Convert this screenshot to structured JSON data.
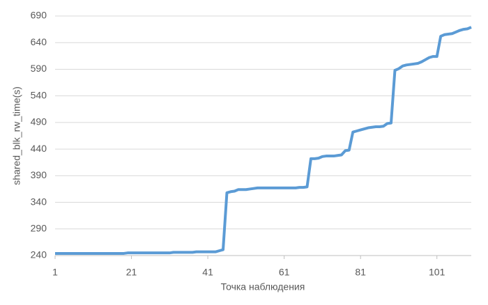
{
  "chart_data": {
    "type": "line",
    "x_label": "Точка наблюдения",
    "y_label": "shared_blk_rw_time(s)",
    "x": [
      1,
      2,
      3,
      4,
      5,
      6,
      7,
      8,
      9,
      10,
      11,
      12,
      13,
      14,
      15,
      16,
      17,
      18,
      19,
      20,
      21,
      22,
      23,
      24,
      25,
      26,
      27,
      28,
      29,
      30,
      31,
      32,
      33,
      34,
      35,
      36,
      37,
      38,
      39,
      40,
      41,
      42,
      43,
      44,
      45,
      46,
      47,
      48,
      49,
      50,
      51,
      52,
      53,
      54,
      55,
      56,
      57,
      58,
      59,
      60,
      61,
      62,
      63,
      64,
      65,
      66,
      67,
      68,
      69,
      70,
      71,
      72,
      73,
      74,
      75,
      76,
      77,
      78,
      79,
      80,
      81,
      82,
      83,
      84,
      85,
      86,
      87,
      88,
      89,
      90,
      91,
      92,
      93,
      94,
      95,
      96,
      97,
      98,
      99,
      100,
      101,
      102,
      103,
      104,
      105,
      106,
      107,
      108,
      109,
      110
    ],
    "series": [
      {
        "name": "shared_blk_rw_time(s)",
        "color": "#5b9bd5",
        "values": [
          244,
          244,
          244,
          244,
          244,
          244,
          244,
          244,
          244,
          244,
          244,
          244,
          244,
          244,
          244,
          244,
          244,
          244,
          244,
          245,
          245,
          245,
          245,
          245,
          245,
          245,
          245,
          245,
          245,
          245,
          245,
          246,
          246,
          246,
          246,
          246,
          246,
          247,
          247,
          247,
          247,
          247,
          247,
          249,
          251,
          358,
          360,
          361,
          364,
          364,
          364,
          365,
          366,
          367,
          367,
          367,
          367,
          367,
          367,
          367,
          367,
          367,
          367,
          367,
          368,
          368,
          369,
          422,
          422,
          423,
          426,
          427,
          427,
          427,
          428,
          429,
          437,
          438,
          472,
          474,
          476,
          478,
          480,
          481,
          482,
          482,
          483,
          488,
          489,
          588,
          591,
          596,
          598,
          599,
          600,
          601,
          604,
          608,
          612,
          614,
          614,
          652,
          655,
          656,
          657,
          660,
          663,
          665,
          666,
          669
        ]
      }
    ],
    "xlim": [
      1,
      110
    ],
    "xticks": [
      1,
      21,
      41,
      61,
      81,
      101
    ],
    "ylim": [
      240,
      690
    ],
    "yticks": [
      240,
      290,
      340,
      390,
      440,
      490,
      540,
      590,
      640,
      690
    ],
    "grid": true
  }
}
